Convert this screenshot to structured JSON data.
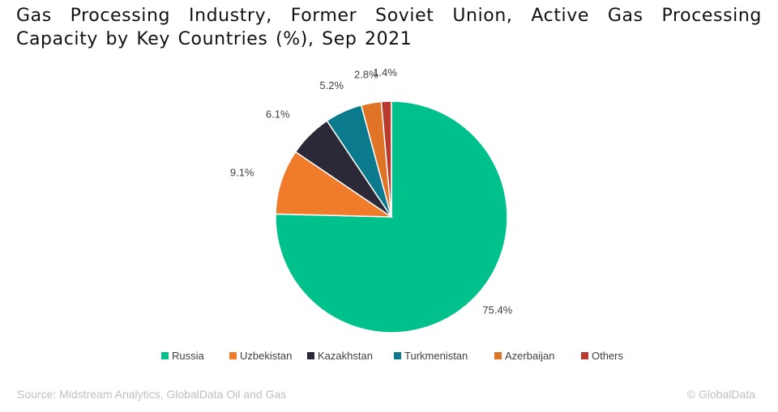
{
  "chart_data": {
    "type": "pie",
    "title": "Gas Processing Industry, Former Soviet Union, Active Gas Processing Capacity by Key Countries (%), Sep 2021",
    "categories": [
      "Russia",
      "Uzbekistan",
      "Kazakhstan",
      "Turkmenistan",
      "Azerbaijan",
      "Others"
    ],
    "values": [
      75.4,
      9.1,
      6.1,
      5.2,
      2.8,
      1.4
    ],
    "value_labels": [
      "75.4%",
      "9.1%",
      "6.1%",
      "5.2%",
      "2.8%",
      "1.4%"
    ],
    "colors": [
      "#00c08b",
      "#f07b2a",
      "#2b2838",
      "#0b7a8c",
      "#df7326",
      "#b83a2c"
    ],
    "legend_position": "bottom",
    "start_angle": "top, clockwise"
  },
  "footer": {
    "source": "Source: Midstream Analytics, GlobalData Oil and Gas",
    "copyright": "© GlobalData"
  }
}
